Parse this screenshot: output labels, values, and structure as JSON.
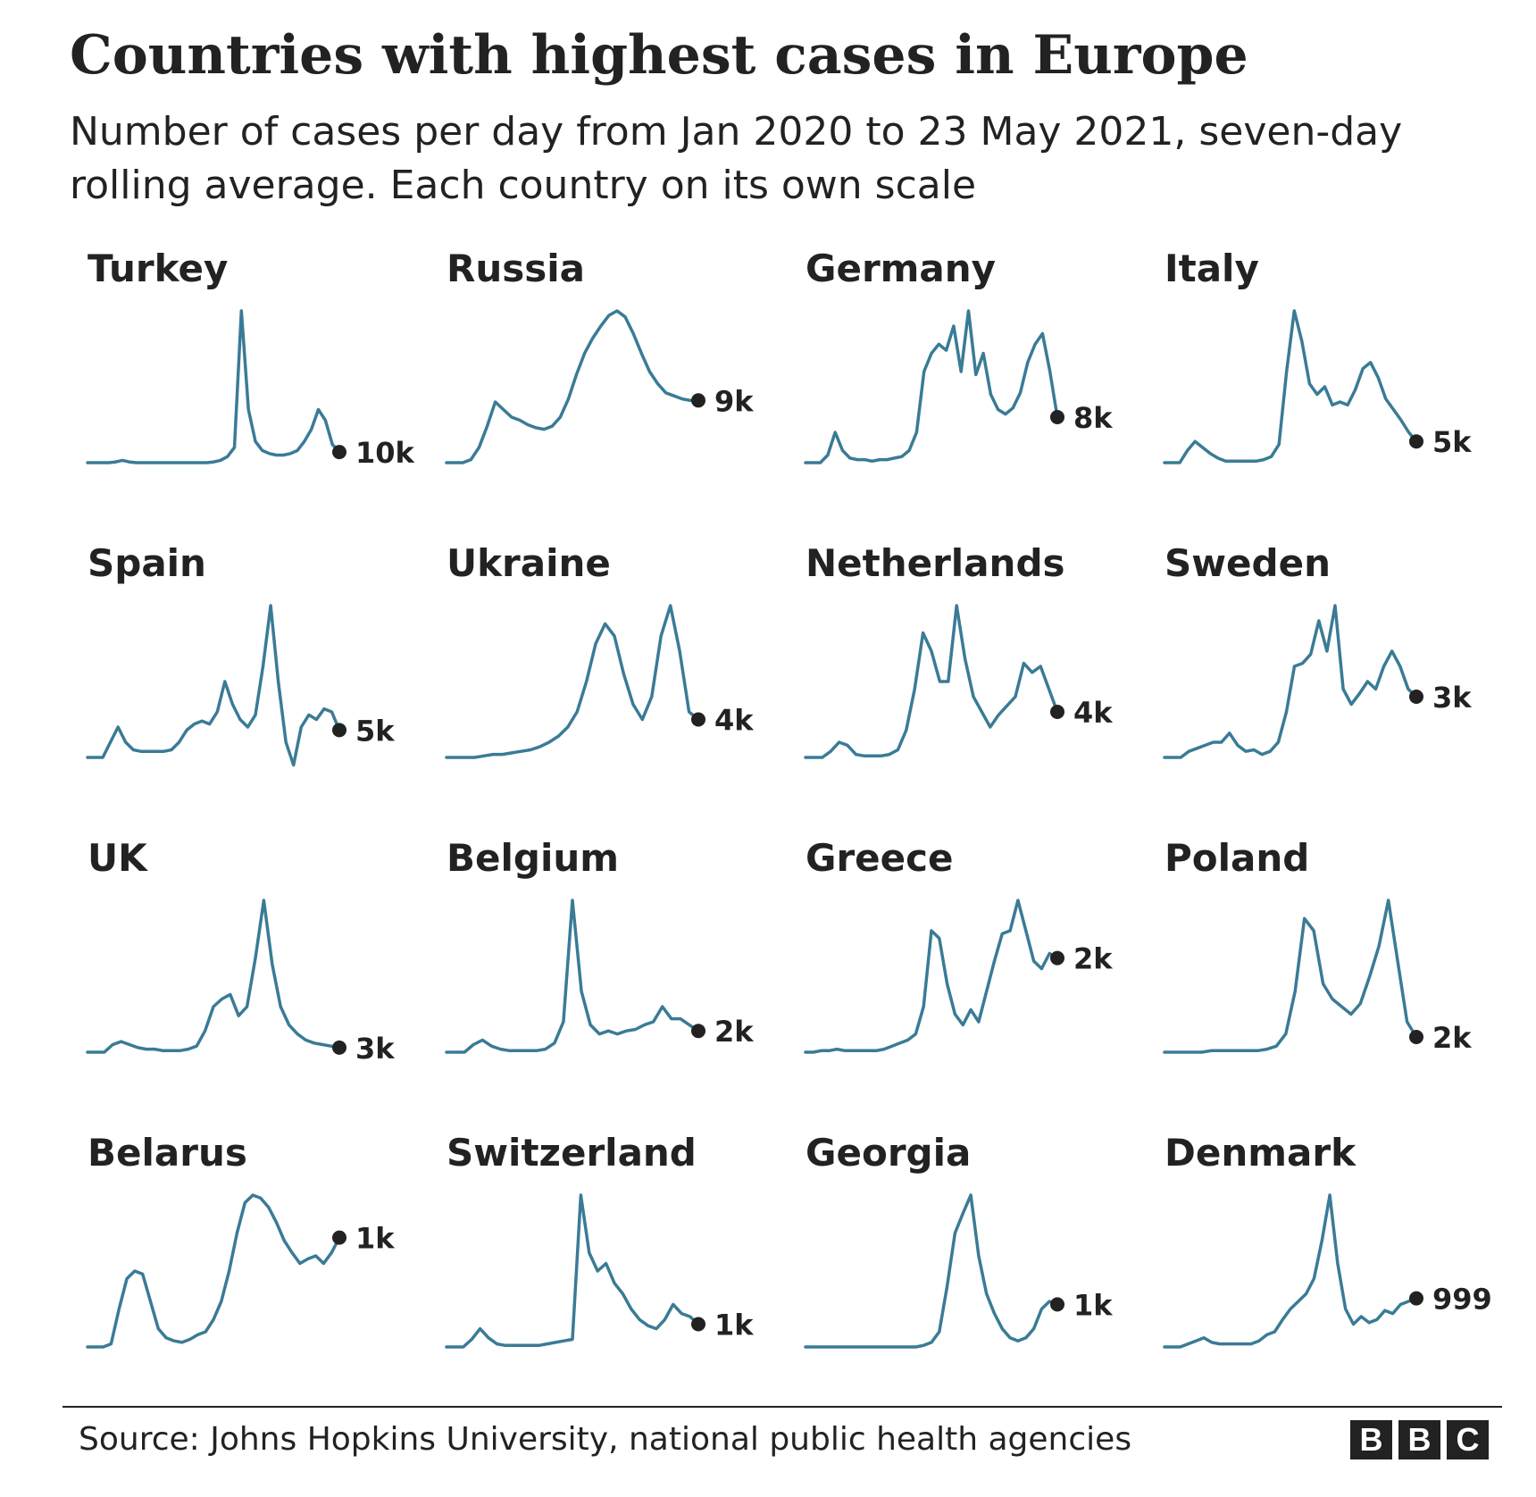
{
  "title": "Countries with highest cases in Europe",
  "subtitle": "Number of cases per day from Jan 2020 to 23 May 2021, seven-day rolling average. Each country on its own scale",
  "source": "Source: Johns Hopkins University, national public health agencies",
  "logo": [
    "B",
    "B",
    "C"
  ],
  "colors": {
    "line": "#3a7b96",
    "dot": "#222222",
    "text": "#222222"
  },
  "chart_data": [
    {
      "type": "line",
      "title": "Turkey",
      "end_label": "10k",
      "x_range": [
        "Jan 2020",
        "23 May 2021"
      ],
      "values": [
        0,
        0,
        0,
        0,
        0.5,
        1.5,
        0.5,
        0,
        0,
        0,
        0,
        0,
        0,
        0,
        0,
        0,
        0,
        0,
        0.5,
        1.5,
        4,
        10,
        100,
        35,
        14,
        8,
        6,
        5,
        5,
        6,
        8,
        14,
        22,
        35,
        28,
        12,
        7
      ]
    },
    {
      "type": "line",
      "title": "Russia",
      "end_label": "9k",
      "x_range": [
        "Jan 2020",
        "23 May 2021"
      ],
      "values": [
        0,
        0,
        0,
        2,
        10,
        24,
        40,
        35,
        30,
        28,
        25,
        23,
        22,
        24,
        30,
        42,
        58,
        72,
        82,
        90,
        97,
        100,
        96,
        85,
        72,
        60,
        52,
        46,
        44,
        42,
        41,
        41
      ]
    },
    {
      "type": "line",
      "title": "Germany",
      "end_label": "8k",
      "x_range": [
        "Jan 2020",
        "23 May 2021"
      ],
      "values": [
        0,
        0,
        0,
        5,
        20,
        8,
        3,
        2,
        2,
        1,
        2,
        2,
        3,
        4,
        8,
        20,
        60,
        72,
        78,
        74,
        90,
        60,
        100,
        58,
        72,
        45,
        35,
        32,
        36,
        46,
        66,
        78,
        85,
        60,
        30
      ]
    },
    {
      "type": "line",
      "title": "Italy",
      "end_label": "5k",
      "x_range": [
        "Jan 2020",
        "23 May 2021"
      ],
      "values": [
        0,
        0,
        0,
        8,
        14,
        10,
        6,
        3,
        1,
        1,
        1,
        1,
        1,
        2,
        4,
        12,
        60,
        100,
        80,
        52,
        45,
        50,
        38,
        40,
        38,
        48,
        62,
        66,
        56,
        42,
        35,
        28,
        20,
        14
      ]
    },
    {
      "type": "line",
      "title": "Spain",
      "end_label": "5k",
      "x_range": [
        "Jan 2020",
        "23 May 2021"
      ],
      "values": [
        0,
        0,
        0,
        10,
        20,
        10,
        5,
        4,
        4,
        4,
        4,
        5,
        10,
        18,
        22,
        24,
        22,
        30,
        50,
        35,
        25,
        20,
        28,
        60,
        100,
        50,
        10,
        -5,
        20,
        28,
        25,
        32,
        30,
        18
      ]
    },
    {
      "type": "line",
      "title": "Ukraine",
      "end_label": "4k",
      "x_range": [
        "Jan 2020",
        "23 May 2021"
      ],
      "values": [
        0,
        0,
        0,
        0,
        1,
        2,
        2,
        3,
        4,
        5,
        7,
        10,
        14,
        20,
        30,
        50,
        75,
        88,
        80,
        55,
        35,
        25,
        40,
        80,
        100,
        70,
        30,
        25
      ]
    },
    {
      "type": "line",
      "title": "Netherlands",
      "end_label": "4k",
      "x_range": [
        "Jan 2020",
        "23 May 2021"
      ],
      "values": [
        0,
        0,
        0,
        4,
        10,
        8,
        2,
        1,
        1,
        1,
        2,
        5,
        18,
        45,
        82,
        70,
        50,
        50,
        100,
        65,
        40,
        30,
        20,
        28,
        34,
        40,
        62,
        56,
        60,
        45,
        30
      ]
    },
    {
      "type": "line",
      "title": "Sweden",
      "end_label": "3k",
      "x_range": [
        "Jan 2020",
        "23 May 2021"
      ],
      "values": [
        0,
        0,
        0,
        4,
        6,
        8,
        10,
        10,
        16,
        8,
        4,
        5,
        2,
        4,
        10,
        30,
        60,
        62,
        68,
        90,
        70,
        100,
        45,
        35,
        42,
        50,
        45,
        60,
        70,
        60,
        45,
        40
      ]
    },
    {
      "type": "line",
      "title": "UK",
      "end_label": "3k",
      "x_range": [
        "Jan 2020",
        "23 May 2021"
      ],
      "values": [
        0,
        0,
        0,
        5,
        7,
        5,
        3,
        2,
        2,
        1,
        1,
        1,
        2,
        4,
        14,
        30,
        35,
        38,
        24,
        30,
        62,
        100,
        58,
        30,
        18,
        12,
        8,
        6,
        5,
        4,
        3
      ]
    },
    {
      "type": "line",
      "title": "Belgium",
      "end_label": "2k",
      "x_range": [
        "Jan 2020",
        "23 May 2021"
      ],
      "values": [
        0,
        0,
        0,
        5,
        8,
        4,
        2,
        1,
        1,
        1,
        1,
        2,
        6,
        20,
        100,
        40,
        18,
        12,
        14,
        12,
        14,
        15,
        18,
        20,
        30,
        22,
        22,
        18,
        14
      ]
    },
    {
      "type": "line",
      "title": "Greece",
      "end_label": "2k",
      "x_range": [
        "Jan 2020",
        "23 May 2021"
      ],
      "values": [
        0,
        0,
        1,
        1,
        2,
        1,
        1,
        1,
        1,
        1,
        2,
        4,
        6,
        8,
        12,
        30,
        80,
        75,
        45,
        25,
        18,
        28,
        20,
        40,
        60,
        78,
        80,
        100,
        80,
        60,
        55,
        65,
        62
      ]
    },
    {
      "type": "line",
      "title": "Poland",
      "end_label": "2k",
      "x_range": [
        "Jan 2020",
        "23 May 2021"
      ],
      "values": [
        0,
        0,
        0,
        0,
        0,
        1,
        1,
        1,
        1,
        1,
        1,
        2,
        4,
        12,
        40,
        88,
        80,
        45,
        35,
        30,
        25,
        32,
        50,
        70,
        100,
        60,
        20,
        10
      ]
    },
    {
      "type": "line",
      "title": "Belarus",
      "end_label": "1k",
      "x_range": [
        "Jan 2020",
        "23 May 2021"
      ],
      "values": [
        0,
        0,
        0,
        2,
        25,
        45,
        50,
        48,
        30,
        12,
        6,
        4,
        3,
        5,
        8,
        10,
        18,
        30,
        50,
        75,
        95,
        100,
        98,
        92,
        82,
        70,
        62,
        55,
        58,
        60,
        55,
        62,
        72
      ]
    },
    {
      "type": "line",
      "title": "Switzerland",
      "end_label": "1k",
      "x_range": [
        "Jan 2020",
        "23 May 2021"
      ],
      "values": [
        0,
        0,
        0,
        5,
        12,
        6,
        2,
        1,
        1,
        1,
        1,
        1,
        2,
        3,
        4,
        5,
        100,
        62,
        50,
        55,
        42,
        35,
        25,
        18,
        14,
        12,
        18,
        28,
        22,
        20,
        15
      ]
    },
    {
      "type": "line",
      "title": "Georgia",
      "end_label": "1k",
      "x_range": [
        "Jan 2020",
        "23 May 2021"
      ],
      "values": [
        0,
        0,
        0,
        0,
        0,
        0,
        0,
        0,
        0,
        0,
        0,
        0,
        0,
        0,
        0,
        1,
        3,
        10,
        40,
        75,
        88,
        100,
        60,
        35,
        22,
        12,
        6,
        4,
        6,
        12,
        25,
        30,
        28
      ]
    },
    {
      "type": "line",
      "title": "Denmark",
      "end_label": "999",
      "x_range": [
        "Jan 2020",
        "23 May 2021"
      ],
      "values": [
        0,
        0,
        0,
        2,
        4,
        6,
        3,
        2,
        2,
        2,
        2,
        2,
        4,
        8,
        10,
        18,
        25,
        30,
        35,
        45,
        70,
        100,
        55,
        25,
        15,
        20,
        16,
        18,
        24,
        22,
        28,
        30,
        32
      ]
    }
  ]
}
